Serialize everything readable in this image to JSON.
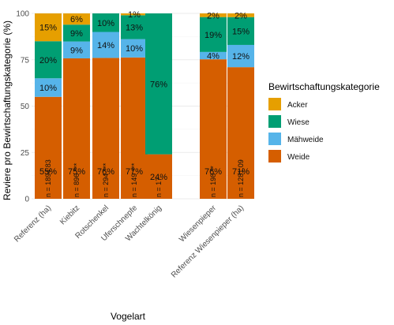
{
  "chart_data": {
    "type": "bar",
    "stacked": true,
    "ylabel": "Reviere pro Bewirtschaftungskategorie (%)",
    "xlabel": "Vogelart",
    "ylim": [
      0,
      100
    ],
    "yticks": [
      0,
      25,
      50,
      75,
      100
    ],
    "grid": true,
    "legend_title": "Bewirtschaftungskategorie",
    "legend_position": "right",
    "categories": [
      "Referenz (ha)",
      "Kiebitz",
      "Rotschenkel",
      "Uferschnepfe",
      "Wachtelkönig",
      "Wiesenpieper",
      "Referenz Wiesenpieper (ha)"
    ],
    "group_breaks_after": [
      4
    ],
    "n_labels": [
      "n = 1894.83",
      "n = 896 ***",
      "n = 294 ***",
      "n = 149 ***",
      "n = 17",
      "n = 198 **",
      "n = 1281.09"
    ],
    "series": [
      {
        "name": "Weide",
        "color": "#D55E00",
        "values": [
          55,
          75,
          76,
          77,
          24,
          76,
          71
        ],
        "labels": [
          "55%",
          "75%",
          "76%",
          "77%",
          "24%",
          "76%",
          "71%"
        ]
      },
      {
        "name": "Mähweide",
        "color": "#56B4E9",
        "values": [
          10,
          9,
          14,
          10,
          0,
          4,
          12
        ],
        "labels": [
          "10%",
          "9%",
          "14%",
          "10%",
          "",
          "4%",
          "12%"
        ]
      },
      {
        "name": "Wiese",
        "color": "#009E73",
        "values": [
          20,
          9,
          10,
          13,
          76,
          19,
          15
        ],
        "labels": [
          "20%",
          "9%",
          "10%",
          "13%",
          "76%",
          "19%",
          "15%"
        ]
      },
      {
        "name": "Acker",
        "color": "#E69F00",
        "values": [
          15,
          6,
          0,
          1,
          0,
          2,
          2
        ],
        "labels": [
          "15%",
          "6%",
          "",
          "1%",
          "",
          "2%",
          "2%"
        ]
      }
    ],
    "legend_order": [
      "Acker",
      "Wiese",
      "Mähweide",
      "Weide"
    ]
  }
}
